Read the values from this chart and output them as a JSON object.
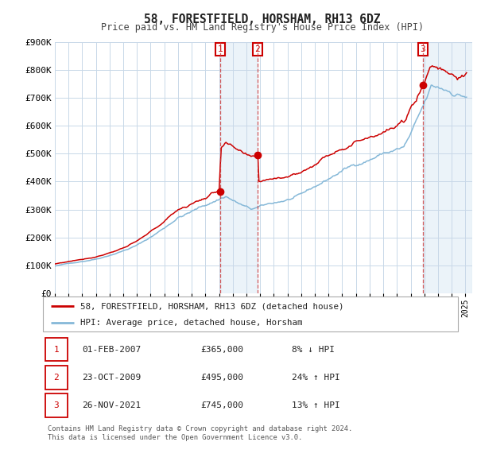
{
  "title": "58, FORESTFIELD, HORSHAM, RH13 6DZ",
  "subtitle": "Price paid vs. HM Land Registry's House Price Index (HPI)",
  "sale_color": "#cc0000",
  "hpi_color": "#85b8d8",
  "hpi_fill_color": "#c8dff0",
  "background_color": "#ffffff",
  "plot_bg_color": "#ffffff",
  "grid_color": "#c8d8e8",
  "vline_color": "#cc3333",
  "transaction1": {
    "date_num": 2007.083,
    "price": 365000
  },
  "transaction2": {
    "date_num": 2009.81,
    "price": 495000
  },
  "transaction3": {
    "date_num": 2021.9,
    "price": 745000
  },
  "legend_sale_label": "58, FORESTFIELD, HORSHAM, RH13 6DZ (detached house)",
  "legend_hpi_label": "HPI: Average price, detached house, Horsham",
  "table_rows": [
    {
      "num": "1",
      "date": "01-FEB-2007",
      "price": "£365,000",
      "change": "8% ↓ HPI"
    },
    {
      "num": "2",
      "date": "23-OCT-2009",
      "price": "£495,000",
      "change": "24% ↑ HPI"
    },
    {
      "num": "3",
      "date": "26-NOV-2021",
      "price": "£745,000",
      "change": "13% ↑ HPI"
    }
  ],
  "footer": "Contains HM Land Registry data © Crown copyright and database right 2024.\nThis data is licensed under the Open Government Licence v3.0.",
  "xmin": 1995.0,
  "xmax": 2025.5,
  "ylim": [
    0,
    900000
  ],
  "yticks": [
    0,
    100000,
    200000,
    300000,
    400000,
    500000,
    600000,
    700000,
    800000,
    900000
  ],
  "ytick_labels": [
    "£0",
    "£100K",
    "£200K",
    "£300K",
    "£400K",
    "£500K",
    "£600K",
    "£700K",
    "£800K",
    "£900K"
  ]
}
